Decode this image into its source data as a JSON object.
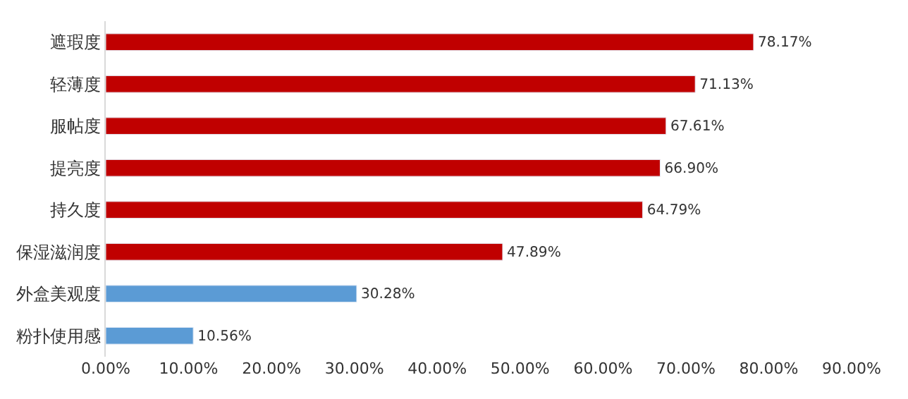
{
  "chart_data": {
    "type": "bar",
    "categories": [
      "遮瑕度",
      "轻薄度",
      "服帖度",
      "提亮度",
      "持久度",
      "保湿滋润度",
      "外盒美观度",
      "粉扑使用感"
    ],
    "values": [
      78.17,
      71.13,
      67.61,
      66.9,
      64.79,
      47.89,
      30.28,
      10.56
    ],
    "value_labels": [
      "78.17%",
      "71.13%",
      "67.61%",
      "66.90%",
      "64.79%",
      "47.89%",
      "30.28%",
      "10.56%"
    ],
    "colors": [
      "#c00000",
      "#c00000",
      "#c00000",
      "#c00000",
      "#c00000",
      "#c00000",
      "#5b9bd5",
      "#5b9bd5"
    ],
    "xlim": [
      0,
      90
    ],
    "xticks": [
      {
        "value": 0,
        "label": "0.00%"
      },
      {
        "value": 10,
        "label": "10.00%"
      },
      {
        "value": 20,
        "label": "20.00%"
      },
      {
        "value": 30,
        "label": "30.00%"
      },
      {
        "value": 40,
        "label": "40.00%"
      },
      {
        "value": 50,
        "label": "50.00%"
      },
      {
        "value": 60,
        "label": "60.00%"
      },
      {
        "value": 70,
        "label": "70.00%"
      },
      {
        "value": 80,
        "label": "80.00%"
      },
      {
        "value": 90,
        "label": "90.00%"
      }
    ],
    "orientation": "horizontal"
  }
}
